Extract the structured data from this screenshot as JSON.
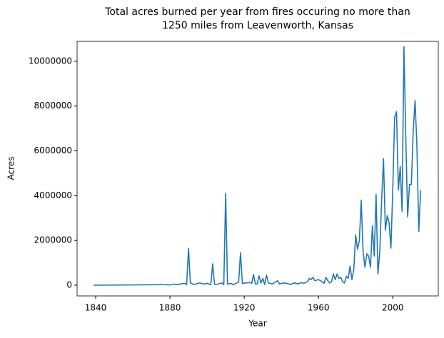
{
  "chart_data": {
    "type": "line",
    "title": [
      "Total acres burned per year from fires occuring no more than",
      "1250 miles from Leavenworth, Kansas"
    ],
    "x_label": "Year",
    "y_label": "Acres",
    "x": [
      1839,
      1860,
      1870,
      1875,
      1880,
      1882,
      1884,
      1886,
      1888,
      1889,
      1890,
      1891,
      1893,
      1896,
      1898,
      1900,
      1902,
      1903,
      1904,
      1906,
      1908,
      1909,
      1910,
      1911,
      1913,
      1914,
      1916,
      1917,
      1918,
      1919,
      1921,
      1923,
      1924,
      1925,
      1926,
      1927,
      1928,
      1929,
      1930,
      1931,
      1932,
      1933,
      1935,
      1937,
      1938,
      1939,
      1941,
      1943,
      1945,
      1947,
      1949,
      1951,
      1952,
      1954,
      1955,
      1956,
      1957,
      1958,
      1960,
      1962,
      1963,
      1964,
      1965,
      1966,
      1967,
      1968,
      1969,
      1970,
      1971,
      1972,
      1973,
      1974,
      1975,
      1976,
      1977,
      1978,
      1979,
      1980,
      1981,
      1982,
      1983,
      1984,
      1985,
      1986,
      1987,
      1988,
      1989,
      1990,
      1991,
      1992,
      1993,
      1994,
      1995,
      1996,
      1997,
      1998,
      1999,
      2000,
      2001,
      2002,
      2003,
      2004,
      2005,
      2006,
      2007,
      2008,
      2009,
      2010,
      2011,
      2012,
      2013,
      2014,
      2015
    ],
    "series": [
      {
        "name": "Acres",
        "color": "#1f77b4",
        "values": [
          0,
          10000,
          20000,
          30000,
          10000,
          50000,
          20000,
          60000,
          80000,
          20000,
          1650000,
          100000,
          30000,
          100000,
          50000,
          80000,
          20000,
          950000,
          30000,
          50000,
          100000,
          20000,
          4100000,
          50000,
          80000,
          20000,
          100000,
          150000,
          1450000,
          80000,
          100000,
          120000,
          80000,
          480000,
          50000,
          60000,
          420000,
          100000,
          300000,
          30000,
          450000,
          100000,
          50000,
          150000,
          200000,
          50000,
          100000,
          80000,
          30000,
          100000,
          60000,
          120000,
          80000,
          150000,
          300000,
          250000,
          350000,
          200000,
          250000,
          150000,
          80000,
          350000,
          200000,
          100000,
          150000,
          500000,
          250000,
          500000,
          300000,
          350000,
          150000,
          100000,
          400000,
          300000,
          850000,
          250000,
          700000,
          2250000,
          1600000,
          2000000,
          3800000,
          1500000,
          800000,
          1400000,
          1300000,
          800000,
          2650000,
          1300000,
          4050000,
          500000,
          1500000,
          3800000,
          5650000,
          2450000,
          3100000,
          2800000,
          1650000,
          4300000,
          7500000,
          7750000,
          4250000,
          5300000,
          3300000,
          10650000,
          6600000,
          3050000,
          4500000,
          4500000,
          6900000,
          8250000,
          6200000,
          2400000,
          4250000
        ]
      }
    ],
    "xlim": [
      1830,
      2024.5
    ],
    "xticks": [
      1840,
      1880,
      1920,
      1960,
      2000
    ],
    "ylim": [
      -480000,
      10890000
    ],
    "yticks": [
      0,
      2000000,
      4000000,
      6000000,
      8000000,
      10000000
    ]
  }
}
